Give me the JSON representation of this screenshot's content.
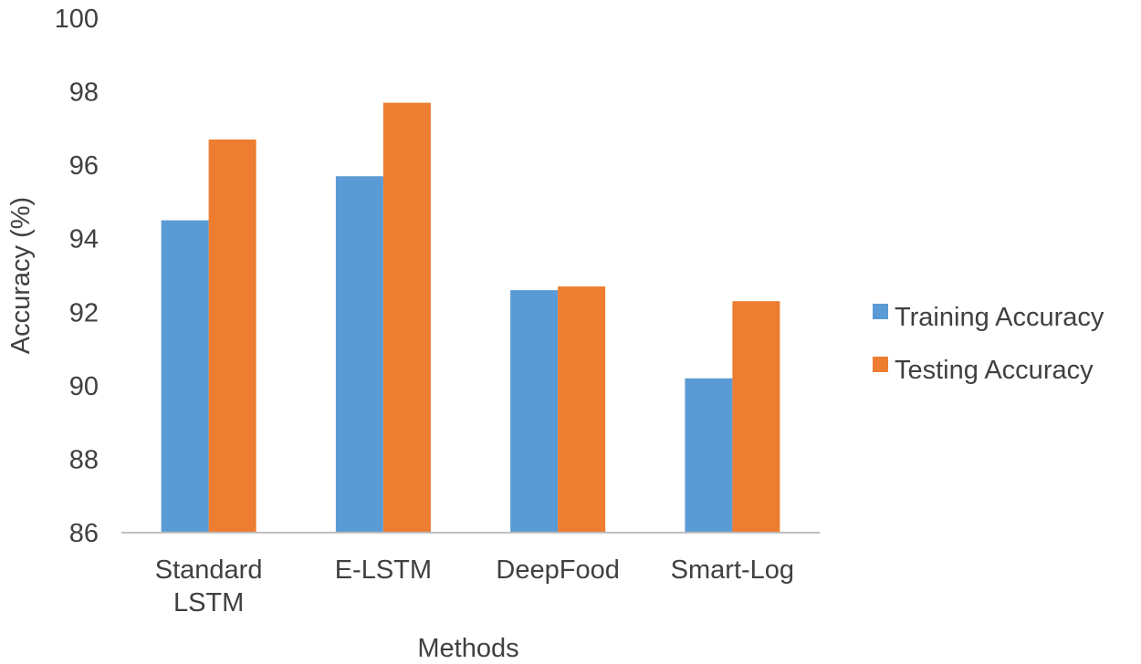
{
  "chart_data": {
    "type": "bar",
    "categories": [
      [
        "Standard",
        "LSTM"
      ],
      [
        "E-LSTM"
      ],
      [
        "DeepFood"
      ],
      [
        "Smart-Log"
      ]
    ],
    "series": [
      {
        "name": "Training Accuracy",
        "color": "#5b9bd5",
        "values": [
          94.5,
          95.7,
          92.6,
          90.2
        ]
      },
      {
        "name": "Testing Accuracy",
        "color": "#ed7d31",
        "values": [
          96.7,
          97.7,
          92.7,
          92.3
        ]
      }
    ],
    "title": "",
    "xlabel": "Methods",
    "ylabel": "Accuracy (%)",
    "ylim": [
      86,
      100
    ],
    "yticks": [
      86,
      88,
      90,
      92,
      94,
      96,
      98,
      100
    ],
    "grid": false,
    "legend_position": "right"
  }
}
